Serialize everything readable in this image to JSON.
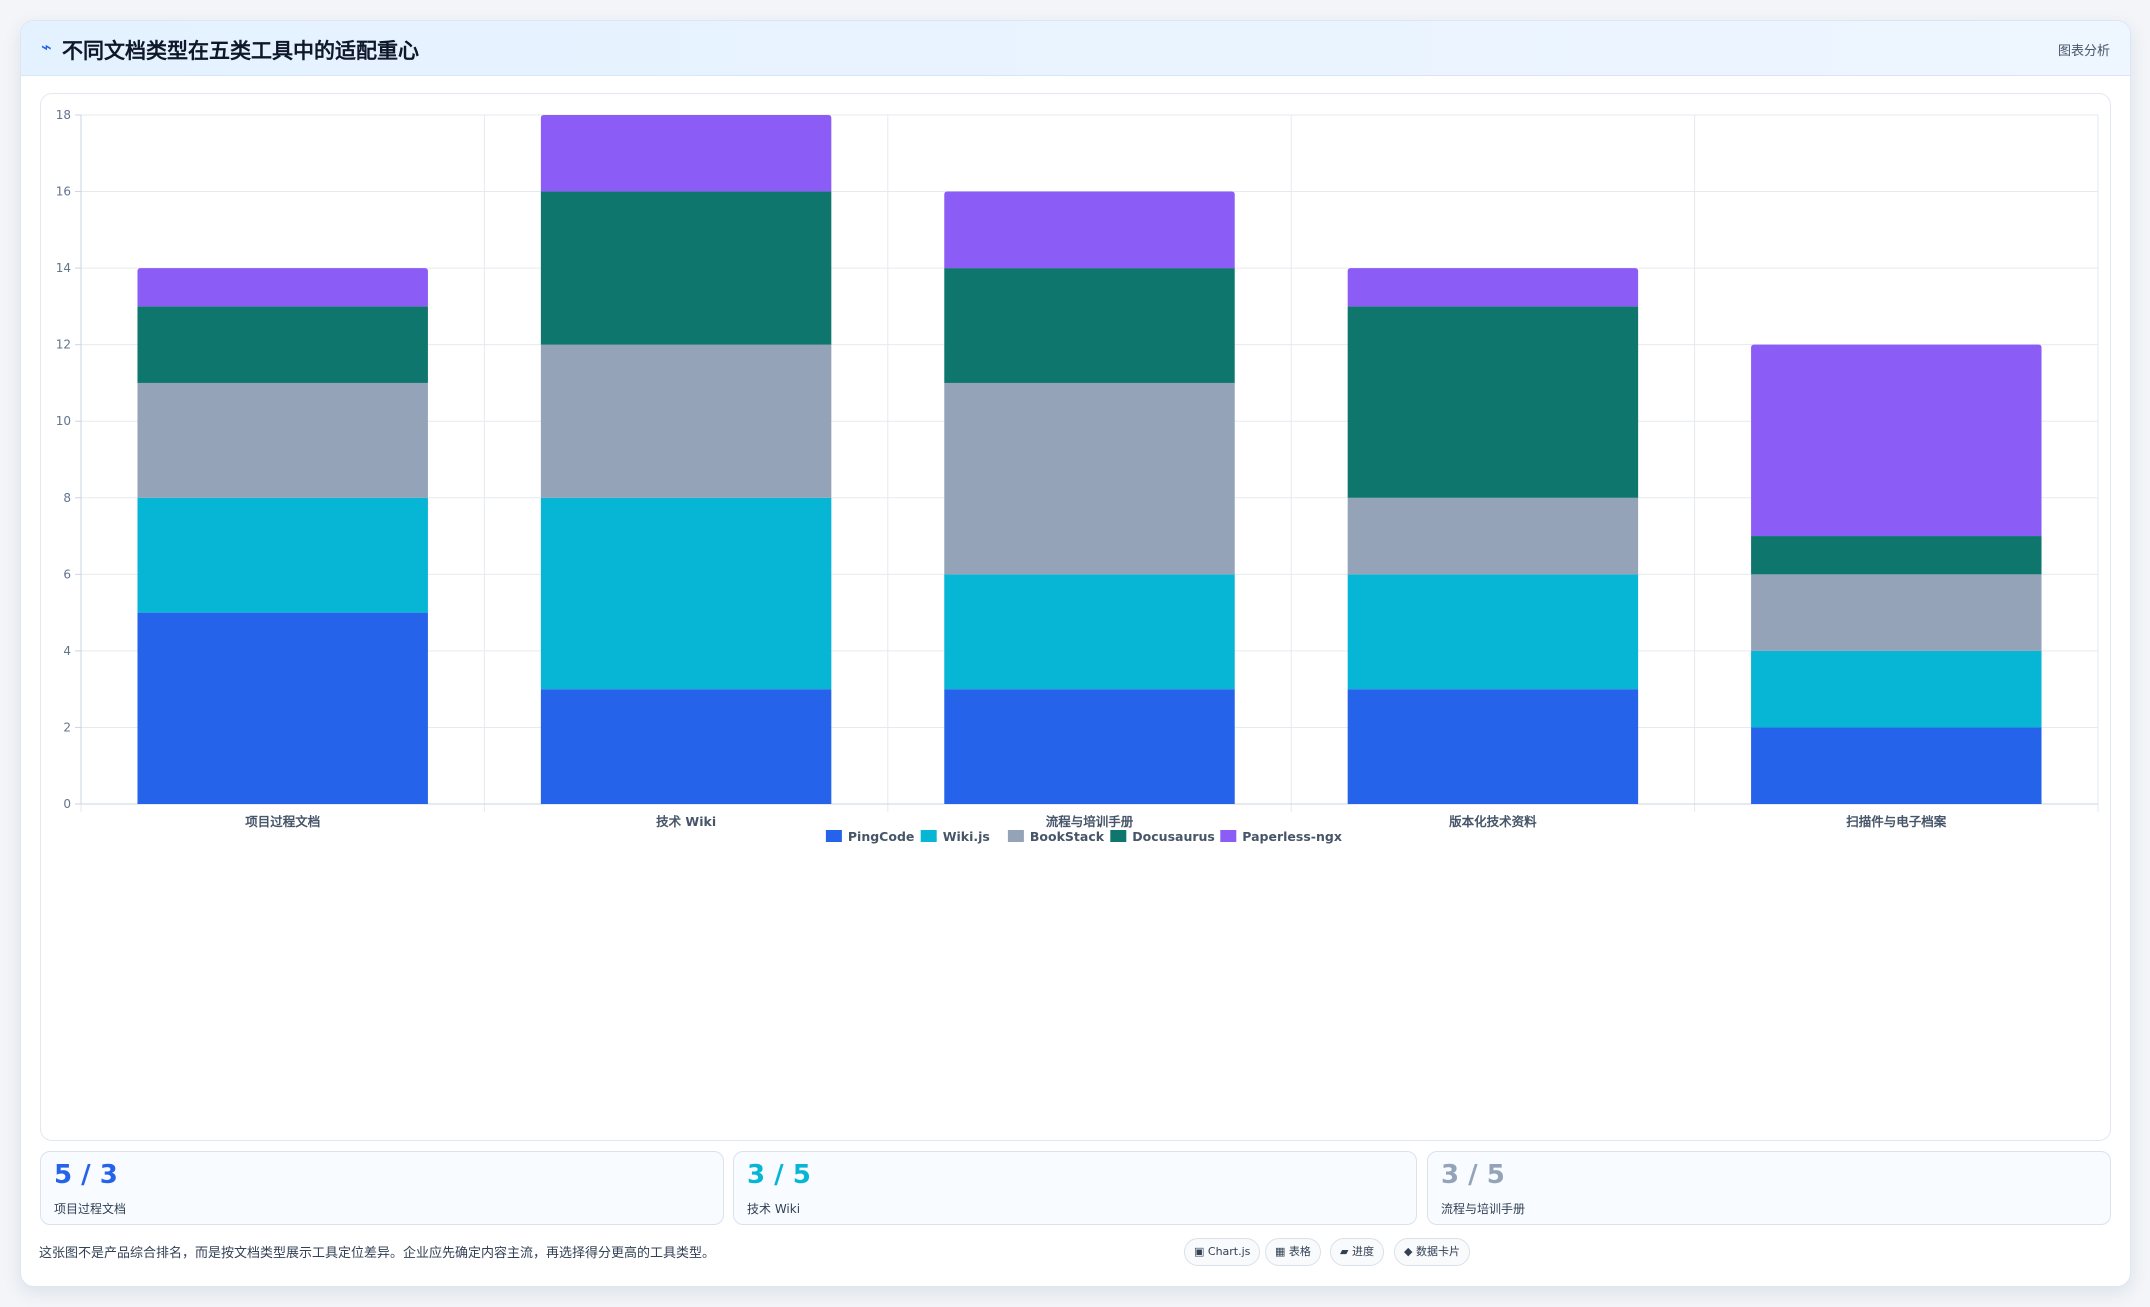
{
  "header": {
    "icon": "chart-icon",
    "title": "不同文档类型在五类工具中的适配重心",
    "tag": "图表分析"
  },
  "colors": {
    "PingCode": "#2563eb",
    "Wiki.js": "#06b6d4",
    "BookStack": "#94a3b8",
    "Docusaurus": "#0f766e",
    "Paperless-ngx": "#8b5cf6"
  },
  "chart_data": {
    "type": "bar",
    "stacked": true,
    "categories": [
      "项目过程文档",
      "技术 Wiki",
      "流程与培训手册",
      "版本化技术资料",
      "扫描件与电子档案"
    ],
    "series": [
      {
        "name": "PingCode",
        "values": [
          5,
          3,
          3,
          3,
          2
        ]
      },
      {
        "name": "Wiki.js",
        "values": [
          3,
          5,
          3,
          3,
          2
        ]
      },
      {
        "name": "BookStack",
        "values": [
          3,
          4,
          5,
          2,
          2
        ]
      },
      {
        "name": "Docusaurus",
        "values": [
          2,
          4,
          3,
          5,
          1
        ]
      },
      {
        "name": "Paperless-ngx",
        "values": [
          1,
          2,
          2,
          1,
          5
        ]
      }
    ],
    "ylim": [
      0,
      18
    ],
    "yticks": [
      0,
      2,
      4,
      6,
      8,
      10,
      12,
      14,
      16,
      18
    ],
    "grid": true,
    "legend_position": "bottom"
  },
  "stats": [
    {
      "value": "5 / 3",
      "label": "项目过程文档",
      "color": "#2563eb"
    },
    {
      "value": "3 / 5",
      "label": "技术 Wiki",
      "color": "#06b6d4"
    },
    {
      "value": "3 / 5",
      "label": "流程与培训手册",
      "color": "#94a3b8"
    }
  ],
  "footer": {
    "note": "这张图不是产品综合排名，而是按文档类型展示工具定位差异。企业应先确定内容主流，再选择得分更高的工具类型。",
    "chips": [
      "▣ Chart.js",
      "▦ 表格",
      "▰ 进度",
      "◆ 数据卡片"
    ]
  }
}
